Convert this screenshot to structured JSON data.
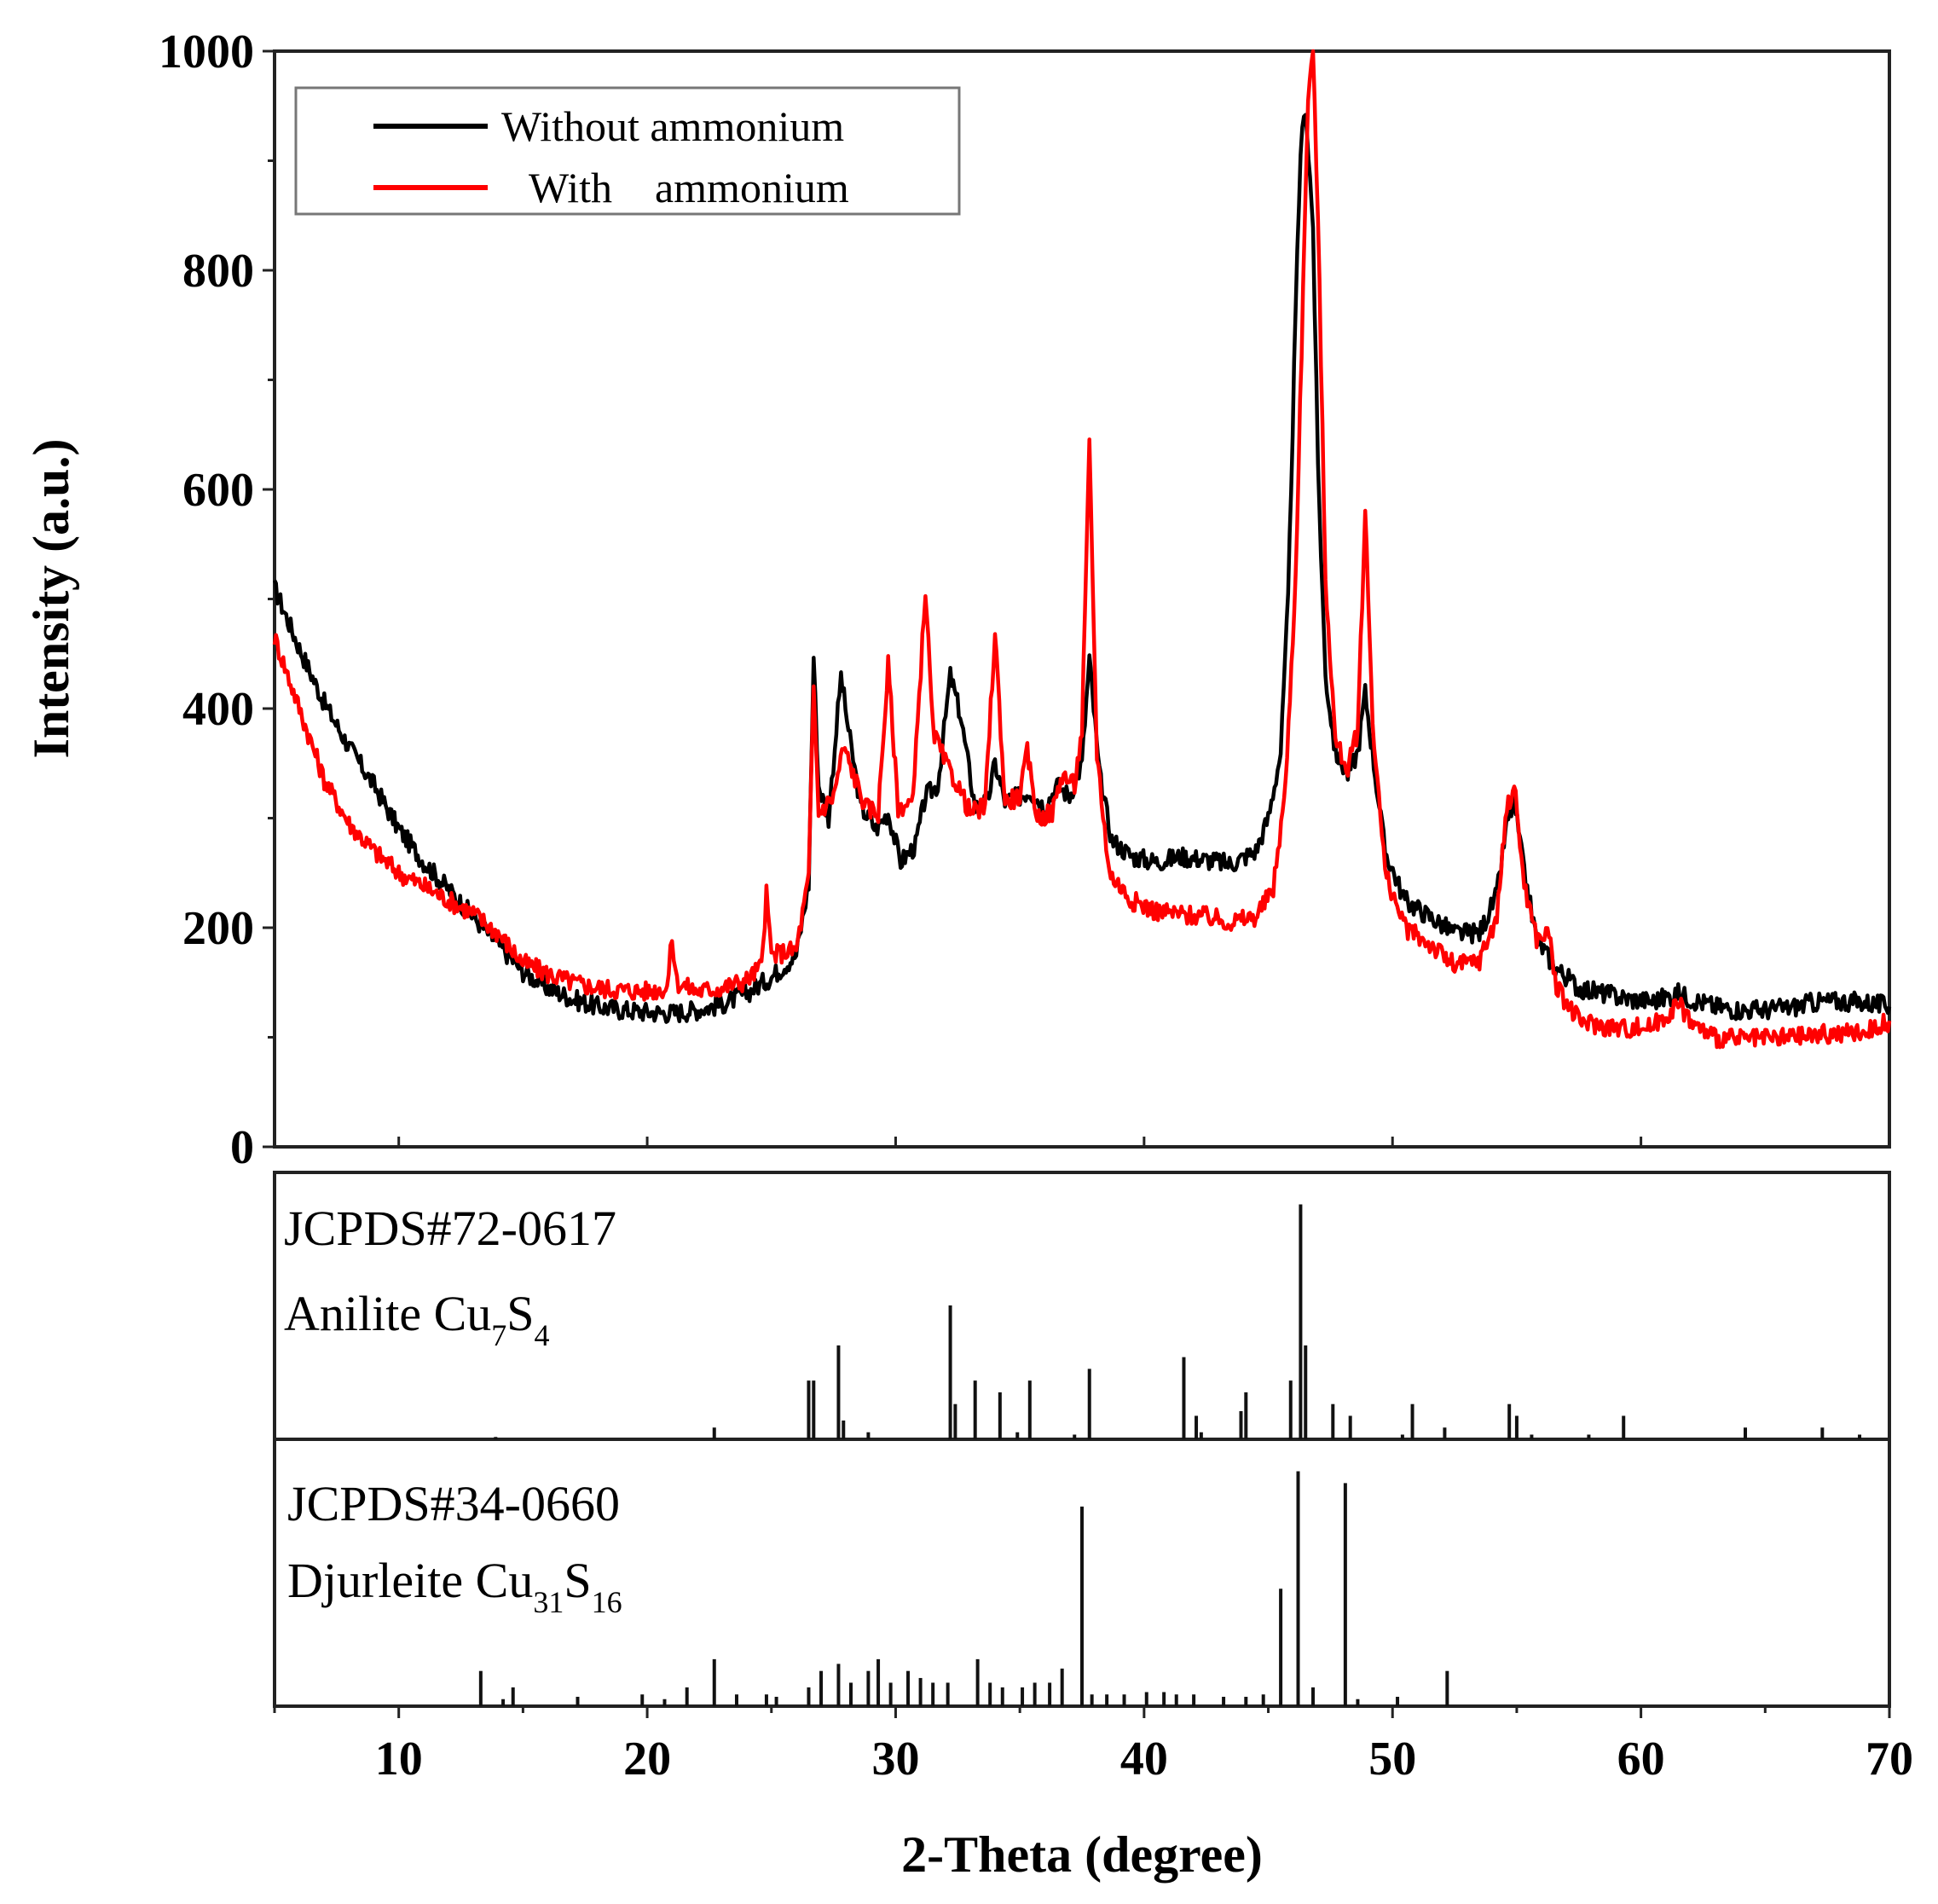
{
  "chart_data": {
    "type": "line",
    "xlabel": "2-Theta (degree)",
    "ylabel": "Intensity (a.u.)",
    "xlim": [
      5,
      70
    ],
    "ylim": [
      0,
      1000
    ],
    "x_ticks": [
      10,
      20,
      30,
      40,
      50,
      60,
      70
    ],
    "x_tick_labels": [
      "10",
      "20",
      "30",
      "40",
      "50",
      "60",
      "70"
    ],
    "y_ticks": [
      0,
      200,
      400,
      600,
      800,
      1000
    ],
    "y_tick_labels": [
      "0",
      "200",
      "400",
      "600",
      "800",
      "1000"
    ],
    "legend": {
      "position": "top-left",
      "entries": [
        {
          "label": "Without ammonium",
          "color": "#000000"
        },
        {
          "label": "With    ammonium",
          "color": "#ff0000"
        }
      ]
    },
    "series": [
      {
        "name": "Without ammonium",
        "color": "#000000",
        "points": [
          [
            5,
            510
          ],
          [
            6,
            455
          ],
          [
            7,
            405
          ],
          [
            8,
            365
          ],
          [
            9,
            330
          ],
          [
            10,
            290
          ],
          [
            11,
            260
          ],
          [
            12,
            235
          ],
          [
            13,
            210
          ],
          [
            14,
            185
          ],
          [
            15,
            160
          ],
          [
            16,
            145
          ],
          [
            17,
            135
          ],
          [
            18,
            128
          ],
          [
            19,
            125
          ],
          [
            20,
            123
          ],
          [
            21,
            122
          ],
          [
            22,
            125
          ],
          [
            23,
            130
          ],
          [
            24,
            140
          ],
          [
            25,
            155
          ],
          [
            26,
            175
          ],
          [
            26.5,
            240
          ],
          [
            26.7,
            448
          ],
          [
            26.9,
            330
          ],
          [
            27.3,
            300
          ],
          [
            27.8,
            430
          ],
          [
            28.1,
            380
          ],
          [
            28.6,
            310
          ],
          [
            29.2,
            290
          ],
          [
            29.7,
            305
          ],
          [
            30.2,
            260
          ],
          [
            30.8,
            275
          ],
          [
            31.2,
            320
          ],
          [
            31.7,
            330
          ],
          [
            32.2,
            430
          ],
          [
            32.6,
            395
          ],
          [
            33.2,
            310
          ],
          [
            33.7,
            315
          ],
          [
            34.0,
            350
          ],
          [
            34.4,
            315
          ],
          [
            35.0,
            320
          ],
          [
            35.4,
            325
          ],
          [
            36.0,
            310
          ],
          [
            36.5,
            330
          ],
          [
            37.0,
            320
          ],
          [
            37.5,
            350
          ],
          [
            37.8,
            445
          ],
          [
            38.2,
            340
          ],
          [
            38.7,
            280
          ],
          [
            39.5,
            265
          ],
          [
            40.5,
            260
          ],
          [
            41.5,
            265
          ],
          [
            42.5,
            262
          ],
          [
            43.5,
            258
          ],
          [
            44.5,
            270
          ],
          [
            45.0,
            300
          ],
          [
            45.5,
            360
          ],
          [
            45.8,
            500
          ],
          [
            46.1,
            760
          ],
          [
            46.3,
            910
          ],
          [
            46.5,
            950
          ],
          [
            46.8,
            840
          ],
          [
            47.0,
            620
          ],
          [
            47.3,
            430
          ],
          [
            47.7,
            360
          ],
          [
            48.2,
            340
          ],
          [
            48.6,
            360
          ],
          [
            48.9,
            415
          ],
          [
            49.3,
            340
          ],
          [
            49.7,
            270
          ],
          [
            50.5,
            225
          ],
          [
            51.5,
            210
          ],
          [
            52.5,
            195
          ],
          [
            53.5,
            195
          ],
          [
            54.2,
            230
          ],
          [
            54.6,
            295
          ],
          [
            54.9,
            315
          ],
          [
            55.3,
            250
          ],
          [
            55.8,
            190
          ],
          [
            56.5,
            165
          ],
          [
            57.5,
            145
          ],
          [
            58.5,
            140
          ],
          [
            59.5,
            135
          ],
          [
            60.5,
            133
          ],
          [
            61.5,
            140
          ],
          [
            62,
            135
          ],
          [
            63,
            128
          ],
          [
            64,
            125
          ],
          [
            65,
            125
          ],
          [
            66,
            127
          ],
          [
            67,
            132
          ],
          [
            68,
            133
          ],
          [
            69,
            132
          ],
          [
            70,
            128
          ]
        ]
      },
      {
        "name": "With    ammonium",
        "color": "#ff0000",
        "points": [
          [
            5,
            465
          ],
          [
            6,
            400
          ],
          [
            7,
            335
          ],
          [
            8,
            295
          ],
          [
            9,
            270
          ],
          [
            10,
            250
          ],
          [
            11,
            238
          ],
          [
            12,
            225
          ],
          [
            13,
            213
          ],
          [
            14,
            195
          ],
          [
            15,
            168
          ],
          [
            16,
            158
          ],
          [
            17,
            150
          ],
          [
            18,
            145
          ],
          [
            19,
            143
          ],
          [
            20,
            142
          ],
          [
            20.8,
            145
          ],
          [
            21.0,
            190
          ],
          [
            21.2,
            150
          ],
          [
            22,
            142
          ],
          [
            23,
            145
          ],
          [
            24,
            152
          ],
          [
            24.6,
            165
          ],
          [
            24.8,
            230
          ],
          [
            25.0,
            175
          ],
          [
            26,
            180
          ],
          [
            26.5,
            245
          ],
          [
            26.7,
            420
          ],
          [
            26.9,
            305
          ],
          [
            27.5,
            320
          ],
          [
            27.9,
            365
          ],
          [
            28.3,
            340
          ],
          [
            28.8,
            310
          ],
          [
            29.3,
            305
          ],
          [
            29.7,
            440
          ],
          [
            30.1,
            310
          ],
          [
            30.7,
            315
          ],
          [
            31.2,
            510
          ],
          [
            31.5,
            380
          ],
          [
            32.0,
            350
          ],
          [
            32.5,
            330
          ],
          [
            33.0,
            305
          ],
          [
            33.6,
            310
          ],
          [
            34.0,
            470
          ],
          [
            34.4,
            315
          ],
          [
            35.0,
            320
          ],
          [
            35.3,
            360
          ],
          [
            35.7,
            300
          ],
          [
            36.3,
            305
          ],
          [
            36.7,
            340
          ],
          [
            37.2,
            330
          ],
          [
            37.5,
            380
          ],
          [
            37.8,
            640
          ],
          [
            38.1,
            360
          ],
          [
            38.6,
            250
          ],
          [
            39.5,
            225
          ],
          [
            40.5,
            215
          ],
          [
            41.5,
            212
          ],
          [
            42.5,
            210
          ],
          [
            43.5,
            205
          ],
          [
            44.5,
            210
          ],
          [
            45.2,
            235
          ],
          [
            45.7,
            330
          ],
          [
            46.1,
            520
          ],
          [
            46.4,
            780
          ],
          [
            46.6,
            960
          ],
          [
            46.8,
            1000
          ],
          [
            47.0,
            850
          ],
          [
            47.3,
            520
          ],
          [
            47.7,
            370
          ],
          [
            48.2,
            345
          ],
          [
            48.6,
            380
          ],
          [
            48.9,
            580
          ],
          [
            49.2,
            390
          ],
          [
            49.7,
            250
          ],
          [
            50.5,
            200
          ],
          [
            51.5,
            185
          ],
          [
            52.5,
            165
          ],
          [
            53.5,
            170
          ],
          [
            54.2,
            210
          ],
          [
            54.6,
            310
          ],
          [
            54.9,
            330
          ],
          [
            55.3,
            240
          ],
          [
            55.8,
            190
          ],
          [
            56.3,
            195
          ],
          [
            56.6,
            145
          ],
          [
            57.5,
            115
          ],
          [
            58.5,
            110
          ],
          [
            59.5,
            108
          ],
          [
            60.5,
            110
          ],
          [
            61.5,
            130
          ],
          [
            62.2,
            110
          ],
          [
            63,
            100
          ],
          [
            64,
            98
          ],
          [
            65,
            98
          ],
          [
            66,
            100
          ],
          [
            67,
            102
          ],
          [
            68,
            103
          ],
          [
            69,
            105
          ],
          [
            70,
            115
          ]
        ]
      }
    ],
    "reference_patterns": [
      {
        "label": "JCPDS#72-0617",
        "name": "Anilite Cu",
        "subscript_1": "7",
        "element_2": "S",
        "subscript_2": "4",
        "lines": [
          [
            13.9,
            0.01
          ],
          [
            22.7,
            0.05
          ],
          [
            26.5,
            0.25
          ],
          [
            26.7,
            0.25
          ],
          [
            27.7,
            0.4
          ],
          [
            27.9,
            0.08
          ],
          [
            28.9,
            0.03
          ],
          [
            32.2,
            0.57
          ],
          [
            32.4,
            0.15
          ],
          [
            33.2,
            0.25
          ],
          [
            34.2,
            0.2
          ],
          [
            34.9,
            0.03
          ],
          [
            35.4,
            0.25
          ],
          [
            37.2,
            0.02
          ],
          [
            37.8,
            0.3
          ],
          [
            41.6,
            0.35
          ],
          [
            42.1,
            0.1
          ],
          [
            42.3,
            0.03
          ],
          [
            43.9,
            0.12
          ],
          [
            44.1,
            0.2
          ],
          [
            45.9,
            0.25
          ],
          [
            46.3,
            1.0
          ],
          [
            46.5,
            0.4
          ],
          [
            47.6,
            0.15
          ],
          [
            48.3,
            0.1
          ],
          [
            50.4,
            0.02
          ],
          [
            50.8,
            0.15
          ],
          [
            52.1,
            0.05
          ],
          [
            54.7,
            0.15
          ],
          [
            55.0,
            0.1
          ],
          [
            55.6,
            0.02
          ],
          [
            57.9,
            0.02
          ],
          [
            59.3,
            0.1
          ],
          [
            64.2,
            0.05
          ],
          [
            67.3,
            0.05
          ],
          [
            68.8,
            0.02
          ]
        ]
      },
      {
        "label": "JCPDS#34-0660",
        "name": "Djurleite Cu",
        "subscript_1": "31",
        "element_2": "S",
        "subscript_2": "16",
        "lines": [
          [
            13.3,
            0.15
          ],
          [
            14.2,
            0.03
          ],
          [
            14.6,
            0.08
          ],
          [
            17.2,
            0.04
          ],
          [
            19.8,
            0.05
          ],
          [
            20.7,
            0.03
          ],
          [
            21.6,
            0.08
          ],
          [
            22.7,
            0.2
          ],
          [
            23.6,
            0.05
          ],
          [
            24.8,
            0.05
          ],
          [
            25.2,
            0.04
          ],
          [
            26.5,
            0.08
          ],
          [
            27.0,
            0.15
          ],
          [
            27.7,
            0.18
          ],
          [
            28.2,
            0.1
          ],
          [
            28.9,
            0.15
          ],
          [
            29.3,
            0.2
          ],
          [
            29.8,
            0.1
          ],
          [
            30.5,
            0.15
          ],
          [
            31.0,
            0.12
          ],
          [
            31.5,
            0.1
          ],
          [
            32.1,
            0.1
          ],
          [
            33.3,
            0.2
          ],
          [
            33.8,
            0.1
          ],
          [
            34.3,
            0.08
          ],
          [
            35.1,
            0.08
          ],
          [
            35.6,
            0.1
          ],
          [
            36.2,
            0.1
          ],
          [
            36.7,
            0.16
          ],
          [
            37.5,
            0.85
          ],
          [
            37.9,
            0.05
          ],
          [
            38.5,
            0.05
          ],
          [
            39.2,
            0.05
          ],
          [
            40.1,
            0.06
          ],
          [
            40.8,
            0.06
          ],
          [
            41.3,
            0.05
          ],
          [
            42.0,
            0.05
          ],
          [
            43.2,
            0.04
          ],
          [
            44.1,
            0.04
          ],
          [
            44.8,
            0.05
          ],
          [
            45.5,
            0.5
          ],
          [
            46.2,
            1.0
          ],
          [
            46.8,
            0.08
          ],
          [
            48.1,
            0.95
          ],
          [
            48.6,
            0.03
          ],
          [
            50.2,
            0.04
          ],
          [
            52.2,
            0.15
          ]
        ]
      }
    ]
  }
}
